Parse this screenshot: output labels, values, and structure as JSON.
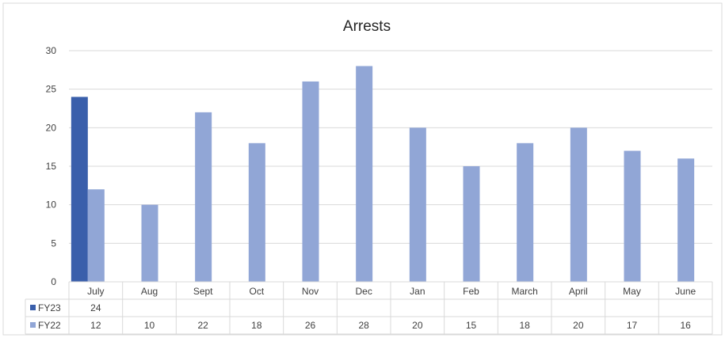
{
  "chart_data": {
    "type": "bar",
    "title": "Arrests",
    "xlabel": "",
    "ylabel": "",
    "ylim": [
      0,
      30
    ],
    "yticks": [
      0,
      5,
      10,
      15,
      20,
      25,
      30
    ],
    "grid": true,
    "legend": "data-table",
    "categories": [
      "July",
      "Aug",
      "Sept",
      "Oct",
      "Nov",
      "Dec",
      "Jan",
      "Feb",
      "March",
      "April",
      "May",
      "June"
    ],
    "series": [
      {
        "name": "FY23",
        "color": "#3a5fab",
        "values": [
          24,
          null,
          null,
          null,
          null,
          null,
          null,
          null,
          null,
          null,
          null,
          null
        ],
        "labels": [
          "24",
          "",
          "",
          "",
          "",
          "",
          "",
          "",
          "",
          "",
          "",
          ""
        ]
      },
      {
        "name": "FY22",
        "color": "#91a6d6",
        "values": [
          12,
          10,
          22,
          18,
          26,
          28,
          20,
          15,
          18,
          20,
          17,
          16
        ],
        "labels": [
          "12",
          "10",
          "22",
          "18",
          "26",
          "28",
          "20",
          "15",
          "18",
          "20",
          "17",
          "16"
        ]
      }
    ]
  }
}
